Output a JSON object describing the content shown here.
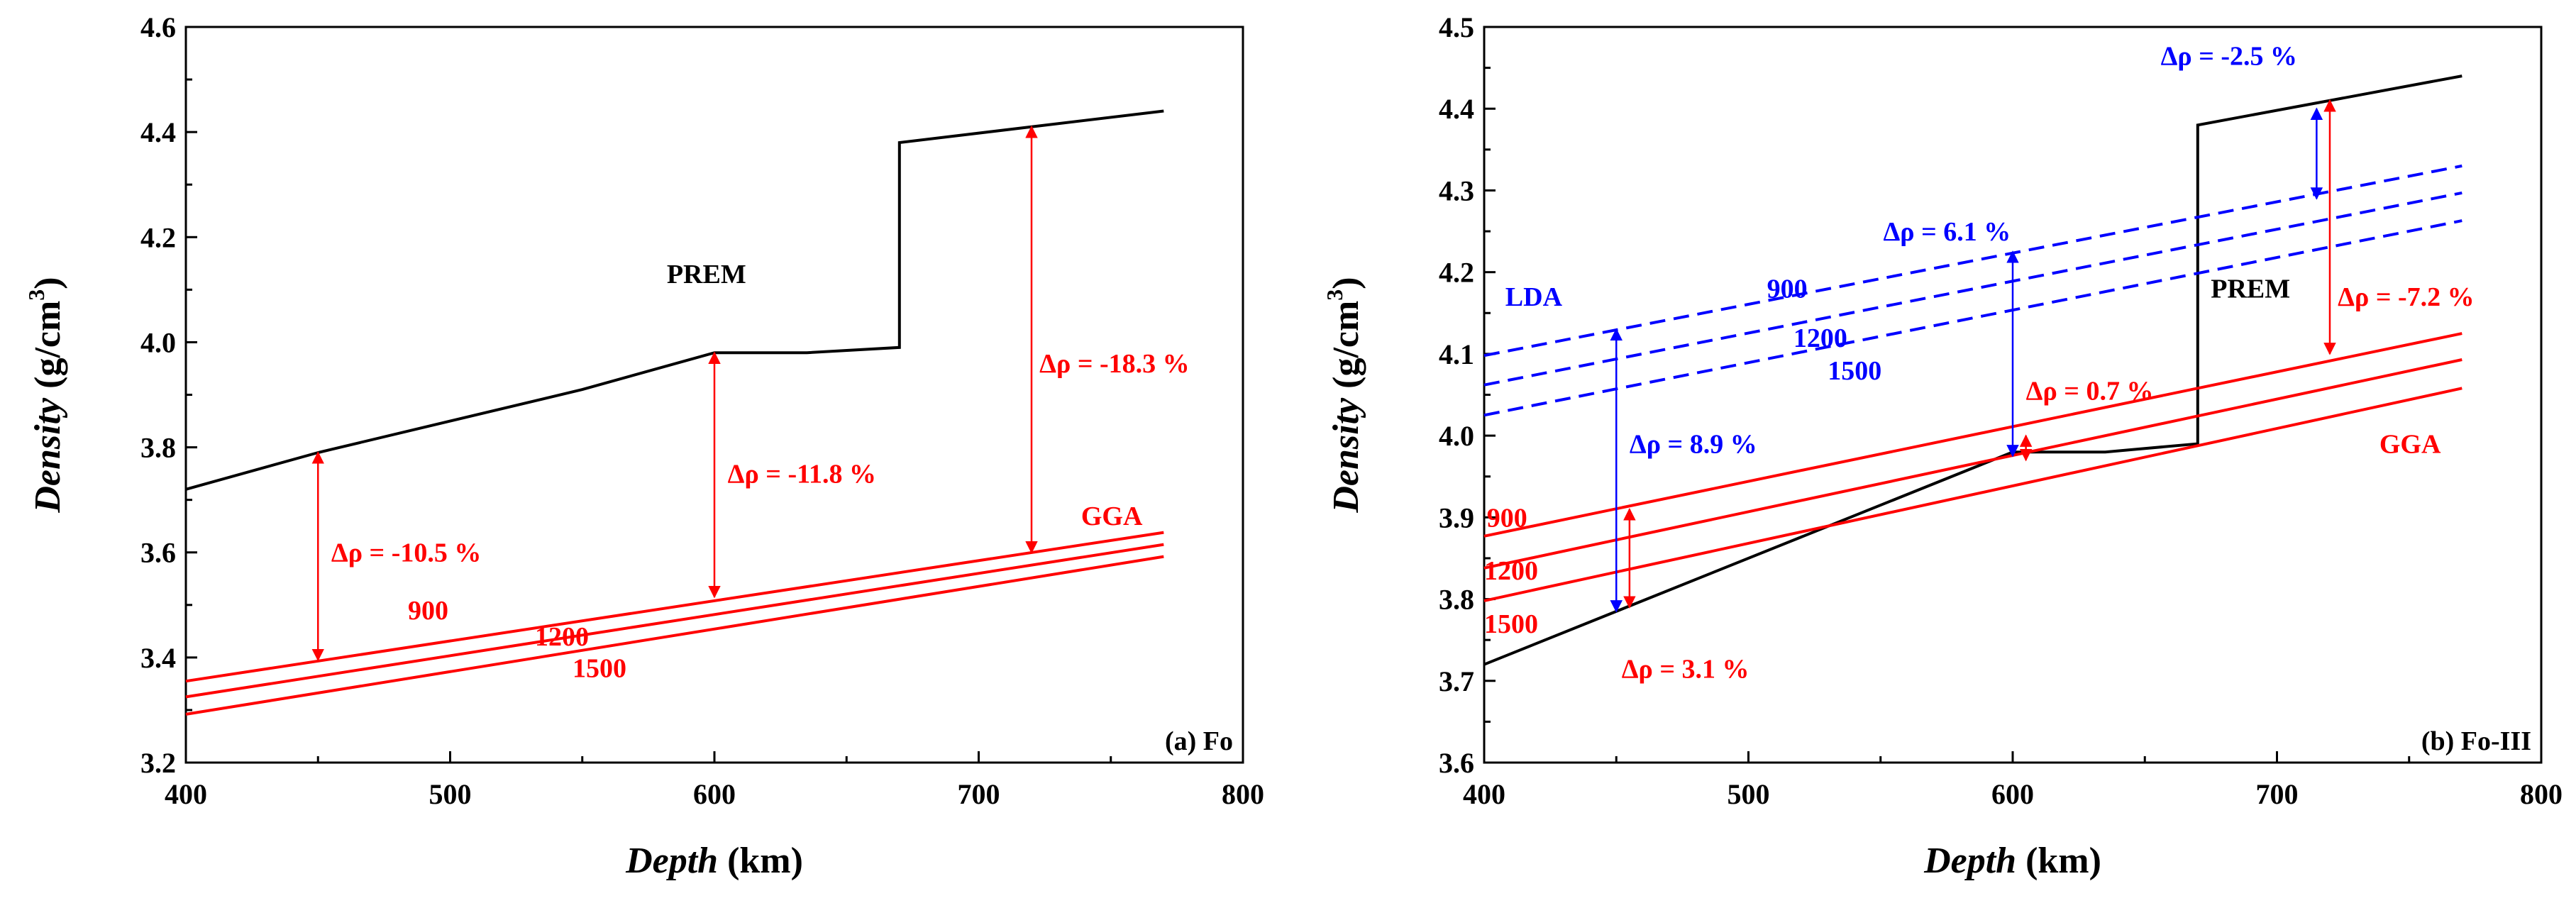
{
  "chart_data": [
    {
      "type": "line",
      "title": "",
      "panel_label": "(a) Fo",
      "xlabel_italic": "Depth",
      "xlabel_unit": "(km)",
      "ylabel_italic": "Density",
      "ylabel_unit": "(g/cm",
      "ylabel_sup": "3",
      "ylabel_close": ")",
      "xlim": [
        400,
        800
      ],
      "ylim": [
        3.2,
        4.6
      ],
      "xticks": [
        400,
        500,
        600,
        700,
        800
      ],
      "ytick_labels": [
        "3.2",
        "3.4",
        "3.6",
        "3.8",
        "4.0",
        "4.2",
        "4.4",
        "4.6"
      ],
      "colors": {
        "prem": "#000000",
        "gga": "#ff0000",
        "lda": "#0000ff"
      },
      "series": [
        {
          "name": "PREM",
          "color": "#000000",
          "dash": false,
          "x": [
            400,
            450,
            550,
            600,
            635,
            670,
            670,
            770
          ],
          "y": [
            3.72,
            3.79,
            3.91,
            3.98,
            3.98,
            3.99,
            4.38,
            4.44
          ]
        },
        {
          "name": "900",
          "color": "#ff0000",
          "dash": false,
          "x": [
            400,
            770
          ],
          "y": [
            3.355,
            3.638
          ]
        },
        {
          "name": "1200",
          "color": "#ff0000",
          "dash": false,
          "x": [
            400,
            770
          ],
          "y": [
            3.325,
            3.615
          ]
        },
        {
          "name": "1500",
          "color": "#ff0000",
          "dash": false,
          "x": [
            400,
            770
          ],
          "y": [
            3.292,
            3.592
          ]
        }
      ],
      "arrows": [
        {
          "x": 450,
          "y1": 3.79,
          "y2": 3.395,
          "color": "#ff0000"
        },
        {
          "x": 600,
          "y1": 3.98,
          "y2": 3.515,
          "color": "#ff0000"
        },
        {
          "x": 720,
          "y1": 4.41,
          "y2": 3.6,
          "color": "#ff0000"
        }
      ],
      "annotations": [
        {
          "text": "PREM",
          "x": 612,
          "y": 4.13,
          "color": "#000000",
          "anchor": "end"
        },
        {
          "text": "GGA",
          "x": 762,
          "y": 3.67,
          "color": "#ff0000",
          "anchor": "end"
        },
        {
          "text": "900",
          "x": 313,
          "y": 3.49,
          "color": "#ff0000",
          "anchor": "start",
          "xunit": "px"
        },
        {
          "text": "1200",
          "x": 492,
          "y": 3.44,
          "color": "#ff0000",
          "anchor": "start",
          "xunit": "px"
        },
        {
          "text": "1500",
          "x": 545,
          "y": 3.38,
          "color": "#ff0000",
          "anchor": "start",
          "xunit": "px"
        },
        {
          "text": "Δρ = -10.5 %",
          "x": 455,
          "y": 3.6,
          "color": "#ff0000",
          "anchor": "start"
        },
        {
          "text": "Δρ = -11.8 %",
          "x": 605,
          "y": 3.75,
          "color": "#ff0000",
          "anchor": "start"
        },
        {
          "text": "Δρ = -18.3 %",
          "x": 723,
          "y": 3.96,
          "color": "#ff0000",
          "anchor": "start"
        }
      ]
    },
    {
      "type": "line",
      "title": "",
      "panel_label": "(b) Fo-III",
      "xlabel_italic": "Depth",
      "xlabel_unit": "(km)",
      "ylabel_italic": "Density",
      "ylabel_unit": "(g/cm",
      "ylabel_sup": "3",
      "ylabel_close": ")",
      "xlim": [
        400,
        800
      ],
      "ylim": [
        3.6,
        4.5
      ],
      "xticks": [
        400,
        500,
        600,
        700,
        800
      ],
      "ytick_labels": [
        "3.6",
        "3.7",
        "3.8",
        "3.9",
        "4.0",
        "4.1",
        "4.2",
        "4.3",
        "4.4",
        "4.5"
      ],
      "colors": {
        "prem": "#000000",
        "gga": "#ff0000",
        "lda": "#0000ff"
      },
      "series": [
        {
          "name": "PREM",
          "color": "#000000",
          "dash": false,
          "x": [
            400,
            600,
            635,
            670,
            670,
            770
          ],
          "y": [
            3.72,
            3.98,
            3.98,
            3.99,
            4.38,
            4.44
          ]
        },
        {
          "name": "GGA 900",
          "color": "#ff0000",
          "dash": false,
          "x": [
            400,
            770
          ],
          "y": [
            3.877,
            4.125
          ]
        },
        {
          "name": "GGA 1200",
          "color": "#ff0000",
          "dash": false,
          "x": [
            400,
            770
          ],
          "y": [
            3.838,
            4.093
          ]
        },
        {
          "name": "GGA 1500",
          "color": "#ff0000",
          "dash": false,
          "x": [
            400,
            770
          ],
          "y": [
            3.798,
            4.058
          ]
        },
        {
          "name": "LDA 900",
          "color": "#0000ff",
          "dash": true,
          "x": [
            400,
            770
          ],
          "y": [
            4.098,
            4.33
          ]
        },
        {
          "name": "LDA 1200",
          "color": "#0000ff",
          "dash": true,
          "x": [
            400,
            770
          ],
          "y": [
            4.062,
            4.297
          ]
        },
        {
          "name": "LDA 1500",
          "color": "#0000ff",
          "dash": true,
          "x": [
            400,
            770
          ],
          "y": [
            4.025,
            4.263
          ]
        }
      ],
      "arrows": [
        {
          "x": 450,
          "y1": 4.13,
          "y2": 3.785,
          "color": "#0000ff"
        },
        {
          "x": 455,
          "y1": 3.91,
          "y2": 3.79,
          "color": "#ff0000"
        },
        {
          "x": 600,
          "y1": 4.225,
          "y2": 3.975,
          "color": "#0000ff"
        },
        {
          "x": 605,
          "y1": 4.0,
          "y2": 3.97,
          "color": "#ff0000"
        },
        {
          "x": 715,
          "y1": 4.4,
          "y2": 4.29,
          "color": "#0000ff"
        },
        {
          "x": 720,
          "y1": 4.41,
          "y2": 4.1,
          "color": "#ff0000"
        }
      ],
      "annotations": [
        {
          "text": "PREM",
          "x": 705,
          "y": 4.18,
          "color": "#000000",
          "anchor": "end"
        },
        {
          "text": "GGA",
          "x": 762,
          "y": 3.99,
          "color": "#ff0000",
          "anchor": "end"
        },
        {
          "text": "LDA",
          "x": 408,
          "y": 4.17,
          "color": "#0000ff",
          "anchor": "start"
        },
        {
          "text": "900",
          "x": 507,
          "y": 4.18,
          "color": "#0000ff",
          "anchor": "start"
        },
        {
          "text": "1200",
          "x": 517,
          "y": 4.12,
          "color": "#0000ff",
          "anchor": "start"
        },
        {
          "text": "1500",
          "x": 530,
          "y": 4.08,
          "color": "#0000ff",
          "anchor": "start"
        },
        {
          "text": "900",
          "x": 401,
          "y": 3.9,
          "color": "#ff0000",
          "anchor": "start"
        },
        {
          "text": "1200",
          "x": 400,
          "y": 3.835,
          "color": "#ff0000",
          "anchor": "start"
        },
        {
          "text": "1500",
          "x": 400,
          "y": 3.77,
          "color": "#ff0000",
          "anchor": "start"
        },
        {
          "text": "Δρ = -2.5 %",
          "x": 656,
          "y": 4.465,
          "color": "#0000ff",
          "anchor": "start"
        },
        {
          "text": "Δρ = 6.1 %",
          "x": 551,
          "y": 4.25,
          "color": "#0000ff",
          "anchor": "start"
        },
        {
          "text": "Δρ = -7.2 %",
          "x": 723,
          "y": 4.17,
          "color": "#ff0000",
          "anchor": "start"
        },
        {
          "text": "Δρ = 0.7 %",
          "x": 605,
          "y": 4.055,
          "color": "#ff0000",
          "anchor": "start"
        },
        {
          "text": "Δρ = 8.9 %",
          "x": 455,
          "y": 3.99,
          "color": "#0000ff",
          "anchor": "start"
        },
        {
          "text": "Δρ = 3.1 %",
          "x": 452,
          "y": 3.715,
          "color": "#ff0000",
          "anchor": "start"
        }
      ]
    }
  ]
}
